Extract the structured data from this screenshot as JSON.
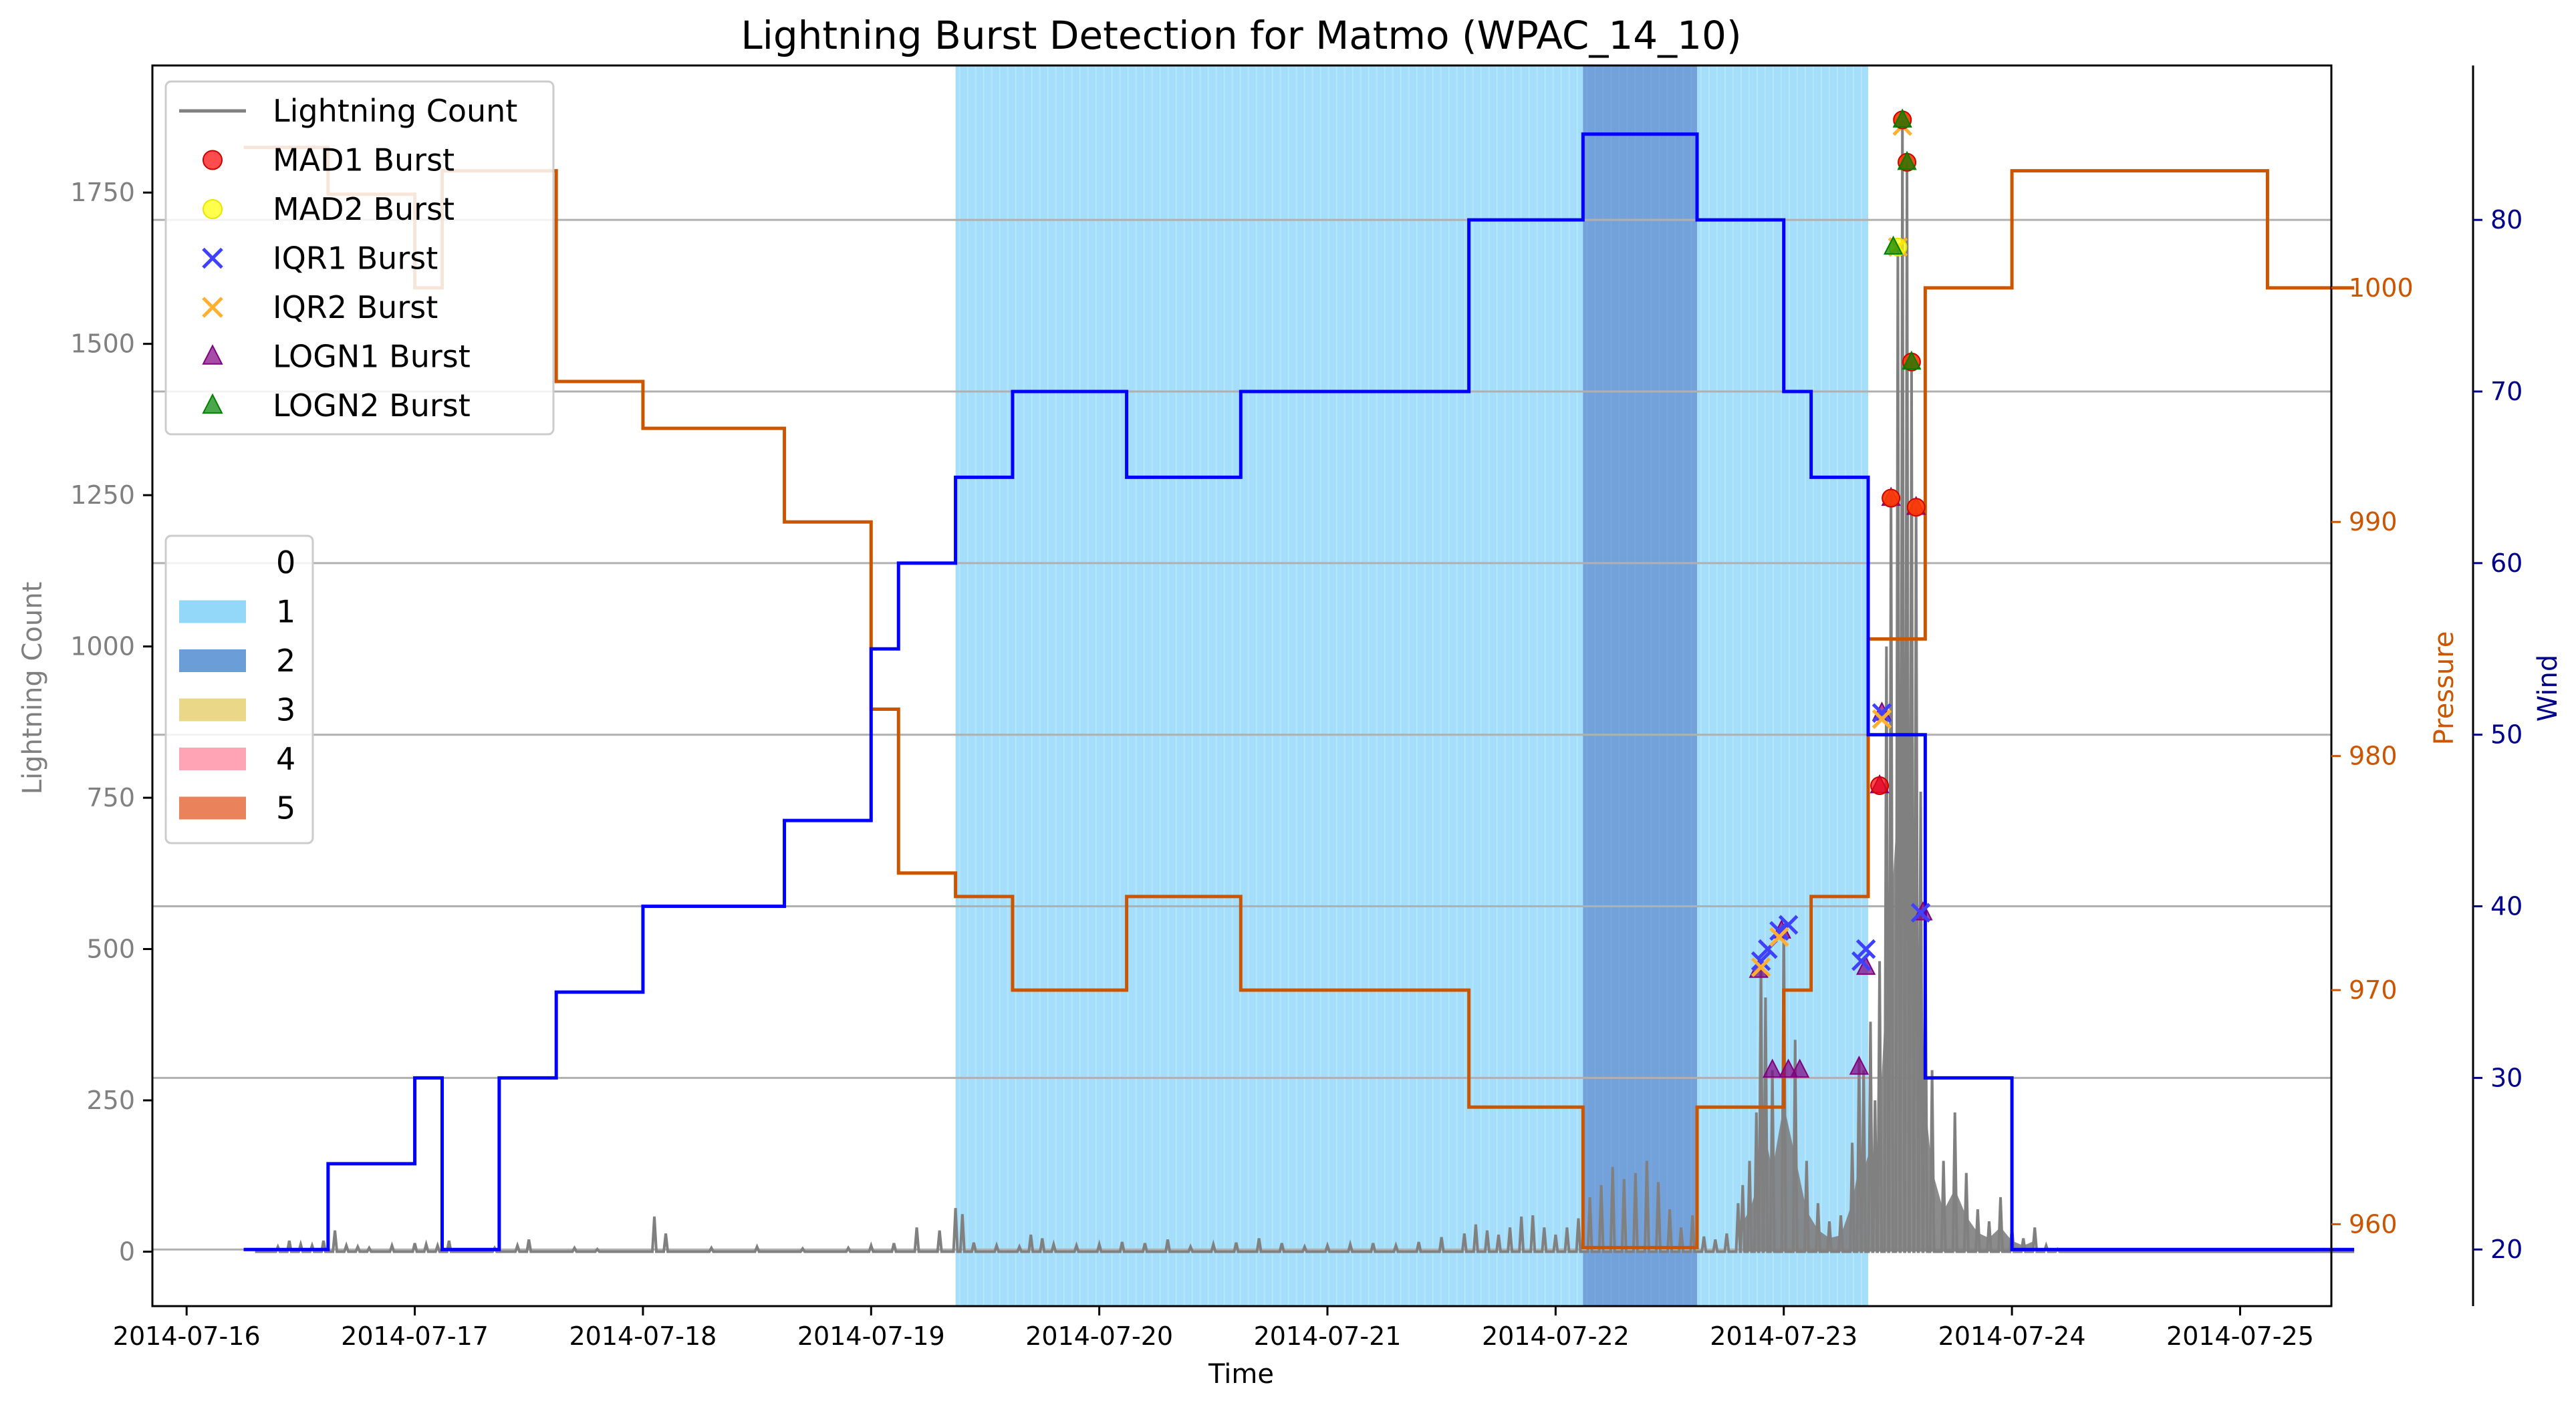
{
  "chart_data": {
    "type": "line",
    "title": "Lightning Burst Detection for Matmo (WPAC_14_10)",
    "xlabel": "Time",
    "ylabel_left": "Lightning Count",
    "ylabel_right_pressure": "Pressure",
    "ylabel_right_wind": "Wind",
    "x_range_days": [
      -0.15,
      9.4
    ],
    "x_ticks": [
      {
        "day": 0,
        "label": "2014-07-16"
      },
      {
        "day": 1,
        "label": "2014-07-17"
      },
      {
        "day": 2,
        "label": "2014-07-18"
      },
      {
        "day": 3,
        "label": "2014-07-19"
      },
      {
        "day": 4,
        "label": "2014-07-20"
      },
      {
        "day": 5,
        "label": "2014-07-21"
      },
      {
        "day": 6,
        "label": "2014-07-22"
      },
      {
        "day": 7,
        "label": "2014-07-23"
      },
      {
        "day": 8,
        "label": "2014-07-24"
      },
      {
        "day": 9,
        "label": "2014-07-25"
      }
    ],
    "ylim_left": [
      -90,
      1960
    ],
    "y_ticks_left": [
      0,
      250,
      500,
      750,
      1000,
      1250,
      1500,
      1750
    ],
    "ylim_pressure": [
      956.5,
      1009.5
    ],
    "y_ticks_pressure": [
      960,
      970,
      980,
      990,
      1000
    ],
    "ylim_wind": [
      16.7,
      89
    ],
    "y_ticks_wind": [
      20,
      30,
      40,
      50,
      60,
      70,
      80
    ],
    "grid_lines_wind": [
      20,
      30,
      40,
      50,
      60,
      70,
      80
    ],
    "colors": {
      "lightning": "#808080",
      "pressure": "#cc5500",
      "wind": "#0000ff",
      "category_1": "#87d3f8",
      "category_2": "#5b92d4",
      "category_3": "#e8d37a",
      "category_4": "#ff9aac",
      "category_5": "#e8744a",
      "grid": "#b0b0b0"
    },
    "category_shading": [
      {
        "category": 1,
        "start_day": 3.37,
        "end_day": 6.12
      },
      {
        "category": 2,
        "start_day": 6.12,
        "end_day": 6.62
      },
      {
        "category": 1,
        "start_day": 6.62,
        "end_day": 7.37
      }
    ],
    "wind_series": {
      "name": "Wind",
      "points": [
        [
          0.25,
          20
        ],
        [
          0.62,
          20
        ],
        [
          0.62,
          25
        ],
        [
          0.75,
          25
        ],
        [
          1.0,
          25
        ],
        [
          1.0,
          30
        ],
        [
          1.12,
          30
        ],
        [
          1.12,
          20
        ],
        [
          1.37,
          20
        ],
        [
          1.37,
          30
        ],
        [
          1.62,
          30
        ],
        [
          1.62,
          35
        ],
        [
          1.75,
          35
        ],
        [
          2.0,
          35
        ],
        [
          2.0,
          40
        ],
        [
          2.62,
          40
        ],
        [
          2.62,
          45
        ],
        [
          2.75,
          45
        ],
        [
          3.0,
          45
        ],
        [
          3.0,
          55
        ],
        [
          3.12,
          55
        ],
        [
          3.12,
          60
        ],
        [
          3.37,
          60
        ],
        [
          3.37,
          65
        ],
        [
          3.62,
          65
        ],
        [
          3.62,
          70
        ],
        [
          4.12,
          70
        ],
        [
          4.12,
          65
        ],
        [
          4.62,
          65
        ],
        [
          4.62,
          70
        ],
        [
          5.62,
          70
        ],
        [
          5.62,
          80
        ],
        [
          6.12,
          80
        ],
        [
          6.12,
          85
        ],
        [
          6.62,
          85
        ],
        [
          6.62,
          80
        ],
        [
          7.0,
          80
        ],
        [
          7.0,
          70
        ],
        [
          7.12,
          70
        ],
        [
          7.12,
          65
        ],
        [
          7.37,
          65
        ],
        [
          7.37,
          50
        ],
        [
          7.62,
          50
        ],
        [
          7.62,
          30
        ],
        [
          7.75,
          30
        ],
        [
          8.0,
          30
        ],
        [
          8.0,
          20
        ],
        [
          9.5,
          20
        ]
      ]
    },
    "pressure_series": {
      "name": "Pressure",
      "points": [
        [
          0.25,
          1006
        ],
        [
          0.62,
          1006
        ],
        [
          0.62,
          1004
        ],
        [
          0.75,
          1004
        ],
        [
          1.0,
          1004
        ],
        [
          1.0,
          1000
        ],
        [
          1.12,
          1000
        ],
        [
          1.12,
          1005
        ],
        [
          1.37,
          1005
        ],
        [
          1.62,
          1005
        ],
        [
          1.62,
          996
        ],
        [
          2.0,
          996
        ],
        [
          2.0,
          994
        ],
        [
          2.62,
          994
        ],
        [
          2.62,
          990
        ],
        [
          3.0,
          990
        ],
        [
          3.0,
          982
        ],
        [
          3.12,
          982
        ],
        [
          3.12,
          975
        ],
        [
          3.37,
          975
        ],
        [
          3.37,
          974
        ],
        [
          3.62,
          974
        ],
        [
          3.62,
          970
        ],
        [
          4.12,
          970
        ],
        [
          4.12,
          974
        ],
        [
          4.62,
          974
        ],
        [
          4.62,
          970
        ],
        [
          5.62,
          970
        ],
        [
          5.62,
          965
        ],
        [
          6.12,
          965
        ],
        [
          6.12,
          959
        ],
        [
          6.62,
          959
        ],
        [
          6.62,
          965
        ],
        [
          7.0,
          965
        ],
        [
          7.0,
          970
        ],
        [
          7.12,
          970
        ],
        [
          7.12,
          974
        ],
        [
          7.37,
          974
        ],
        [
          7.37,
          985
        ],
        [
          7.62,
          985
        ],
        [
          7.62,
          1000
        ],
        [
          8.0,
          1000
        ],
        [
          8.0,
          1005
        ],
        [
          8.37,
          1005
        ],
        [
          9.0,
          1005
        ],
        [
          9.12,
          1005
        ],
        [
          9.12,
          1000
        ],
        [
          9.5,
          1000
        ]
      ]
    },
    "lightning_spikes": [
      [
        0.4,
        8
      ],
      [
        0.45,
        18
      ],
      [
        0.5,
        12
      ],
      [
        0.55,
        10
      ],
      [
        0.6,
        18
      ],
      [
        0.65,
        35
      ],
      [
        0.7,
        10
      ],
      [
        0.75,
        8
      ],
      [
        0.8,
        6
      ],
      [
        0.9,
        10
      ],
      [
        1.0,
        14
      ],
      [
        1.05,
        12
      ],
      [
        1.1,
        10
      ],
      [
        1.15,
        18
      ],
      [
        1.35,
        6
      ],
      [
        1.45,
        10
      ],
      [
        1.5,
        20
      ],
      [
        1.7,
        6
      ],
      [
        1.8,
        4
      ],
      [
        2.05,
        58
      ],
      [
        2.1,
        30
      ],
      [
        2.3,
        6
      ],
      [
        2.5,
        8
      ],
      [
        2.7,
        5
      ],
      [
        2.9,
        6
      ],
      [
        3.0,
        10
      ],
      [
        3.1,
        14
      ],
      [
        3.2,
        40
      ],
      [
        3.3,
        35
      ],
      [
        3.37,
        72
      ],
      [
        3.4,
        62
      ],
      [
        3.45,
        15
      ],
      [
        3.55,
        10
      ],
      [
        3.65,
        8
      ],
      [
        3.7,
        28
      ],
      [
        3.75,
        22
      ],
      [
        3.8,
        12
      ],
      [
        3.9,
        10
      ],
      [
        4.0,
        12
      ],
      [
        4.1,
        16
      ],
      [
        4.2,
        14
      ],
      [
        4.3,
        20
      ],
      [
        4.4,
        8
      ],
      [
        4.5,
        12
      ],
      [
        4.6,
        15
      ],
      [
        4.7,
        22
      ],
      [
        4.8,
        14
      ],
      [
        4.9,
        8
      ],
      [
        5.0,
        10
      ],
      [
        5.1,
        12
      ],
      [
        5.2,
        14
      ],
      [
        5.3,
        10
      ],
      [
        5.4,
        16
      ],
      [
        5.5,
        24
      ],
      [
        5.6,
        30
      ],
      [
        5.65,
        45
      ],
      [
        5.7,
        35
      ],
      [
        5.75,
        28
      ],
      [
        5.8,
        40
      ],
      [
        5.85,
        58
      ],
      [
        5.9,
        60
      ],
      [
        5.95,
        40
      ],
      [
        6.0,
        28
      ],
      [
        6.05,
        40
      ],
      [
        6.1,
        55
      ],
      [
        6.15,
        90
      ],
      [
        6.2,
        110
      ],
      [
        6.25,
        140
      ],
      [
        6.3,
        120
      ],
      [
        6.35,
        130
      ],
      [
        6.4,
        150
      ],
      [
        6.45,
        115
      ],
      [
        6.5,
        70
      ],
      [
        6.55,
        40
      ],
      [
        6.6,
        60
      ],
      [
        6.65,
        25
      ],
      [
        6.7,
        20
      ],
      [
        6.75,
        30
      ],
      [
        6.8,
        80
      ],
      [
        6.82,
        110
      ],
      [
        6.85,
        150
      ],
      [
        6.88,
        230
      ],
      [
        6.9,
        470
      ],
      [
        6.92,
        420
      ],
      [
        6.95,
        300
      ],
      [
        7.0,
        540
      ],
      [
        7.05,
        350
      ],
      [
        7.1,
        150
      ],
      [
        7.15,
        80
      ],
      [
        7.2,
        50
      ],
      [
        7.25,
        60
      ],
      [
        7.3,
        180
      ],
      [
        7.33,
        320
      ],
      [
        7.35,
        300
      ],
      [
        7.38,
        380
      ],
      [
        7.4,
        250
      ],
      [
        7.42,
        480
      ],
      [
        7.45,
        1000
      ],
      [
        7.47,
        1250
      ],
      [
        7.5,
        1660
      ],
      [
        7.52,
        1870
      ],
      [
        7.54,
        1800
      ],
      [
        7.56,
        1470
      ],
      [
        7.58,
        1230
      ],
      [
        7.6,
        760
      ],
      [
        7.62,
        550
      ],
      [
        7.65,
        300
      ],
      [
        7.7,
        150
      ],
      [
        7.75,
        230
      ],
      [
        7.8,
        130
      ],
      [
        7.85,
        70
      ],
      [
        7.9,
        50
      ],
      [
        7.95,
        90
      ],
      [
        8.0,
        40
      ],
      [
        8.05,
        22
      ],
      [
        8.1,
        40
      ],
      [
        8.15,
        10
      ],
      [
        8.2,
        4
      ]
    ],
    "bursts": {
      "mad1": [
        [
          7.42,
          770
        ],
        [
          7.47,
          1245
        ],
        [
          7.52,
          1870
        ],
        [
          7.54,
          1800
        ],
        [
          7.56,
          1470
        ],
        [
          7.58,
          1230
        ]
      ],
      "mad2": [
        [
          7.47,
          1245
        ],
        [
          7.5,
          1660
        ],
        [
          7.52,
          1870
        ],
        [
          7.54,
          1800
        ],
        [
          7.56,
          1470
        ],
        [
          7.58,
          1230
        ]
      ],
      "iqr1": [
        [
          6.9,
          480
        ],
        [
          6.93,
          500
        ],
        [
          6.98,
          530
        ],
        [
          7.02,
          540
        ],
        [
          7.34,
          480
        ],
        [
          7.36,
          500
        ],
        [
          7.43,
          890
        ],
        [
          7.6,
          560
        ]
      ],
      "iqr2": [
        [
          6.9,
          470
        ],
        [
          6.98,
          520
        ],
        [
          7.43,
          880
        ],
        [
          7.5,
          1660
        ],
        [
          7.52,
          1860
        ]
      ],
      "logn1": [
        [
          6.89,
          465
        ],
        [
          6.95,
          300
        ],
        [
          6.99,
          530
        ],
        [
          7.02,
          300
        ],
        [
          7.07,
          300
        ],
        [
          7.33,
          305
        ],
        [
          7.36,
          470
        ],
        [
          7.42,
          770
        ],
        [
          7.43,
          890
        ],
        [
          7.47,
          1245
        ],
        [
          7.58,
          1230
        ],
        [
          7.61,
          560
        ]
      ],
      "logn2": [
        [
          7.48,
          1660
        ],
        [
          7.52,
          1870
        ],
        [
          7.54,
          1800
        ],
        [
          7.56,
          1470
        ]
      ]
    },
    "legend_series": [
      {
        "key": "lightning",
        "label": "Lightning Count"
      },
      {
        "key": "mad1",
        "label": "MAD1 Burst"
      },
      {
        "key": "mad2",
        "label": "MAD2 Burst"
      },
      {
        "key": "iqr1",
        "label": "IQR1 Burst"
      },
      {
        "key": "iqr2",
        "label": "IQR2 Burst"
      },
      {
        "key": "logn1",
        "label": "LOGN1 Burst"
      },
      {
        "key": "logn2",
        "label": "LOGN2 Burst"
      }
    ],
    "legend_categories": [
      "0",
      "1",
      "2",
      "3",
      "4",
      "5"
    ]
  }
}
